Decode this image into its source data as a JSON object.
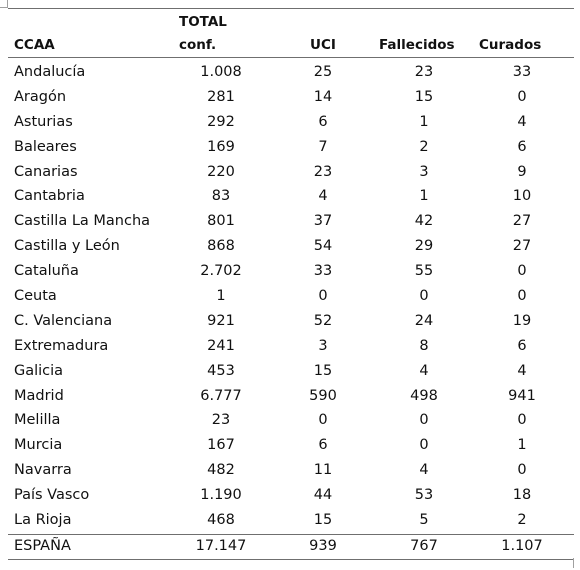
{
  "header": {
    "ccaa": "CCAA",
    "total_line1": "TOTAL",
    "total_line2": "conf.",
    "uci": "UCI",
    "fallecidos": "Fallecidos",
    "curados": "Curados"
  },
  "rows": [
    {
      "ccaa": "Andalucía",
      "total": "1.008",
      "uci": "25",
      "fallecidos": "23",
      "curados": "33"
    },
    {
      "ccaa": "Aragón",
      "total": "281",
      "uci": "14",
      "fallecidos": "15",
      "curados": "0"
    },
    {
      "ccaa": "Asturias",
      "total": "292",
      "uci": "6",
      "fallecidos": "1",
      "curados": "4"
    },
    {
      "ccaa": "Baleares",
      "total": "169",
      "uci": "7",
      "fallecidos": "2",
      "curados": "6"
    },
    {
      "ccaa": "Canarias",
      "total": "220",
      "uci": "23",
      "fallecidos": "3",
      "curados": "9"
    },
    {
      "ccaa": "Cantabria",
      "total": "83",
      "uci": "4",
      "fallecidos": "1",
      "curados": "10"
    },
    {
      "ccaa": "Castilla La Mancha",
      "total": "801",
      "uci": "37",
      "fallecidos": "42",
      "curados": "27"
    },
    {
      "ccaa": "Castilla y León",
      "total": "868",
      "uci": "54",
      "fallecidos": "29",
      "curados": "27"
    },
    {
      "ccaa": "Cataluña",
      "total": "2.702",
      "uci": "33",
      "fallecidos": "55",
      "curados": "0"
    },
    {
      "ccaa": "Ceuta",
      "total": "1",
      "uci": "0",
      "fallecidos": "0",
      "curados": "0"
    },
    {
      "ccaa": "C. Valenciana",
      "total": "921",
      "uci": "52",
      "fallecidos": "24",
      "curados": "19"
    },
    {
      "ccaa": "Extremadura",
      "total": "241",
      "uci": "3",
      "fallecidos": "8",
      "curados": "6"
    },
    {
      "ccaa": "Galicia",
      "total": "453",
      "uci": "15",
      "fallecidos": "4",
      "curados": "4"
    },
    {
      "ccaa": "Madrid",
      "total": "6.777",
      "uci": "590",
      "fallecidos": "498",
      "curados": "941"
    },
    {
      "ccaa": "Melilla",
      "total": "23",
      "uci": "0",
      "fallecidos": "0",
      "curados": "0"
    },
    {
      "ccaa": "Murcia",
      "total": "167",
      "uci": "6",
      "fallecidos": "0",
      "curados": "1"
    },
    {
      "ccaa": "Navarra",
      "total": "482",
      "uci": "11",
      "fallecidos": "4",
      "curados": "0"
    },
    {
      "ccaa": "País Vasco",
      "total": "1.190",
      "uci": "44",
      "fallecidos": "53",
      "curados": "18"
    },
    {
      "ccaa": "La Rioja",
      "total": "468",
      "uci": "15",
      "fallecidos": "5",
      "curados": "2"
    }
  ],
  "totals": {
    "ccaa": "ESPAÑA",
    "total": "17.147",
    "uci": "939",
    "fallecidos": "767",
    "curados": "1.107"
  }
}
